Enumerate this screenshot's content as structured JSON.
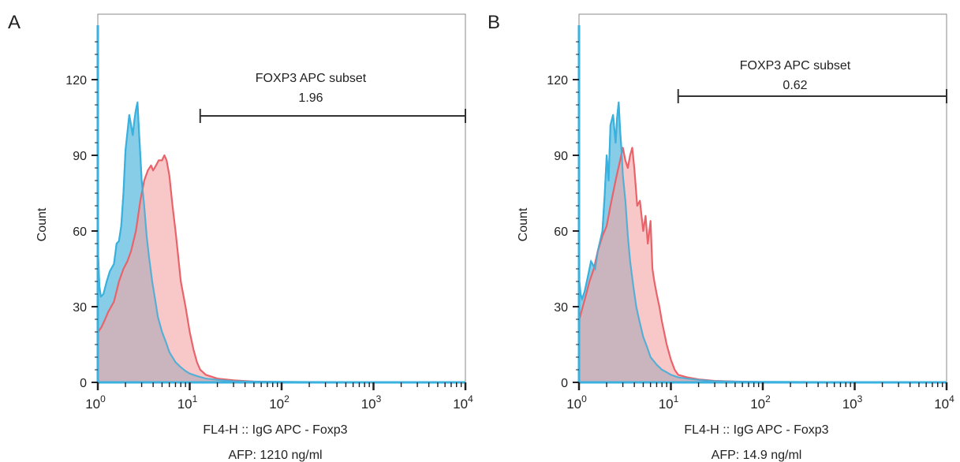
{
  "chart_data": [
    {
      "type": "area",
      "panel_label": "A",
      "gate": {
        "title": "FOXP3 APC subset",
        "value": "1.96",
        "range": [
          13,
          10000
        ]
      },
      "xlabel": "FL4-H :: IgG  APC - Foxp3",
      "caption": "AFP: 1210 ng/ml",
      "ylabel": "Count",
      "x_scale": "log",
      "xlim": [
        1,
        10000
      ],
      "ylim": [
        0,
        140
      ],
      "yticks": [
        "0",
        "30",
        "60",
        "90",
        "120"
      ],
      "xticks": [
        {
          "base": "10",
          "exp": "0"
        },
        {
          "base": "10",
          "exp": "1"
        },
        {
          "base": "10",
          "exp": "2"
        },
        {
          "base": "10",
          "exp": "3"
        },
        {
          "base": "10",
          "exp": "4"
        }
      ],
      "series": [
        {
          "color": "#7ac8e4",
          "line_color": "#3ab1df",
          "x": [
            1,
            1.01,
            1.04,
            1.08,
            1.15,
            1.25,
            1.35,
            1.5,
            1.6,
            1.7,
            1.8,
            1.9,
            2.0,
            2.2,
            2.4,
            2.5,
            2.6,
            2.7,
            2.8,
            2.9,
            3.0,
            3.2,
            3.4,
            3.6,
            3.9,
            4.2,
            4.5,
            5,
            5.5,
            6,
            7,
            8,
            9,
            10,
            12,
            15,
            20,
            30,
            50,
            100,
            1000,
            10000
          ],
          "y": [
            140,
            50,
            38,
            34,
            35,
            40,
            44,
            47,
            55,
            56,
            62,
            75,
            92,
            106,
            98,
            104,
            108,
            111,
            100,
            90,
            80,
            70,
            58,
            50,
            40,
            33,
            26,
            20,
            16,
            12,
            8,
            6,
            4.5,
            3.5,
            2.5,
            1.5,
            1,
            0.5,
            0.3,
            0.2,
            0.1,
            0.1
          ]
        },
        {
          "color": "#f4a4a4",
          "line_color": "#e8636a",
          "x": [
            1,
            1.01,
            1.1,
            1.2,
            1.3,
            1.5,
            1.7,
            1.9,
            2.1,
            2.3,
            2.6,
            2.9,
            3.2,
            3.5,
            3.8,
            4.0,
            4.3,
            4.6,
            5.0,
            5.3,
            5.6,
            6.0,
            6.5,
            7.0,
            7.5,
            8.0,
            9.0,
            10.0,
            11.0,
            12.0,
            13.0,
            15.0,
            20,
            30,
            50,
            100,
            1000,
            10000
          ],
          "y": [
            0,
            20,
            22,
            25,
            28,
            32,
            40,
            45,
            48,
            52,
            60,
            72,
            80,
            84,
            86,
            84,
            86,
            88,
            88,
            90,
            88,
            82,
            70,
            60,
            50,
            40,
            30,
            20,
            13,
            8,
            5,
            3,
            1.5,
            0.8,
            0.3,
            0.1,
            0.1,
            0.1
          ]
        }
      ]
    },
    {
      "type": "area",
      "panel_label": "B",
      "gate": {
        "title": "FOXP3 APC subset",
        "value": "0.62",
        "range": [
          12,
          10000
        ]
      },
      "xlabel": "FL4-H :: IgG  APC - Foxp3",
      "caption": "AFP: 14.9 ng/ml",
      "ylabel": "Count",
      "x_scale": "log",
      "xlim": [
        1,
        10000
      ],
      "ylim": [
        0,
        140
      ],
      "yticks": [
        "0",
        "30",
        "60",
        "90",
        "120"
      ],
      "xticks": [
        {
          "base": "10",
          "exp": "0"
        },
        {
          "base": "10",
          "exp": "1"
        },
        {
          "base": "10",
          "exp": "2"
        },
        {
          "base": "10",
          "exp": "3"
        },
        {
          "base": "10",
          "exp": "4"
        }
      ],
      "series": [
        {
          "color": "#7ac8e4",
          "line_color": "#3ab1df",
          "x": [
            1,
            1.01,
            1.04,
            1.08,
            1.15,
            1.25,
            1.35,
            1.5,
            1.6,
            1.7,
            1.8,
            1.9,
            2.0,
            2.1,
            2.2,
            2.35,
            2.5,
            2.6,
            2.7,
            2.8,
            2.9,
            3.0,
            3.2,
            3.4,
            3.6,
            3.9,
            4.2,
            4.5,
            5,
            5.5,
            6,
            7,
            8,
            9,
            10,
            12,
            15,
            20,
            30,
            50,
            100,
            1000,
            10000
          ],
          "y": [
            140,
            40,
            35,
            33,
            36,
            42,
            48,
            45,
            52,
            56,
            60,
            74,
            90,
            80,
            102,
            106,
            95,
            105,
            111,
            100,
            92,
            82,
            72,
            58,
            48,
            38,
            30,
            25,
            18,
            14,
            10,
            7,
            5,
            4,
            3,
            2,
            1.5,
            1,
            0.5,
            0.3,
            0.2,
            0.1,
            0.1
          ]
        },
        {
          "color": "#f4a4a4",
          "line_color": "#e8636a",
          "x": [
            1,
            1.01,
            1.1,
            1.2,
            1.3,
            1.45,
            1.6,
            1.8,
            2.0,
            2.2,
            2.5,
            2.8,
            3.0,
            3.2,
            3.4,
            3.6,
            3.8,
            4.0,
            4.3,
            4.6,
            5.0,
            5.3,
            5.6,
            6.0,
            6.3,
            6.6,
            7.0,
            7.5,
            8.0,
            9.0,
            10.0,
            11.0,
            12.0,
            15,
            20,
            30,
            50,
            100,
            1000,
            10000
          ],
          "y": [
            0,
            25,
            30,
            35,
            40,
            45,
            52,
            58,
            62,
            70,
            80,
            88,
            93,
            88,
            85,
            90,
            93,
            85,
            70,
            72,
            60,
            66,
            55,
            64,
            45,
            40,
            35,
            30,
            24,
            15,
            9,
            5,
            3,
            2,
            1.2,
            0.6,
            0.3,
            0.1,
            0.1,
            0.1
          ]
        }
      ]
    }
  ]
}
